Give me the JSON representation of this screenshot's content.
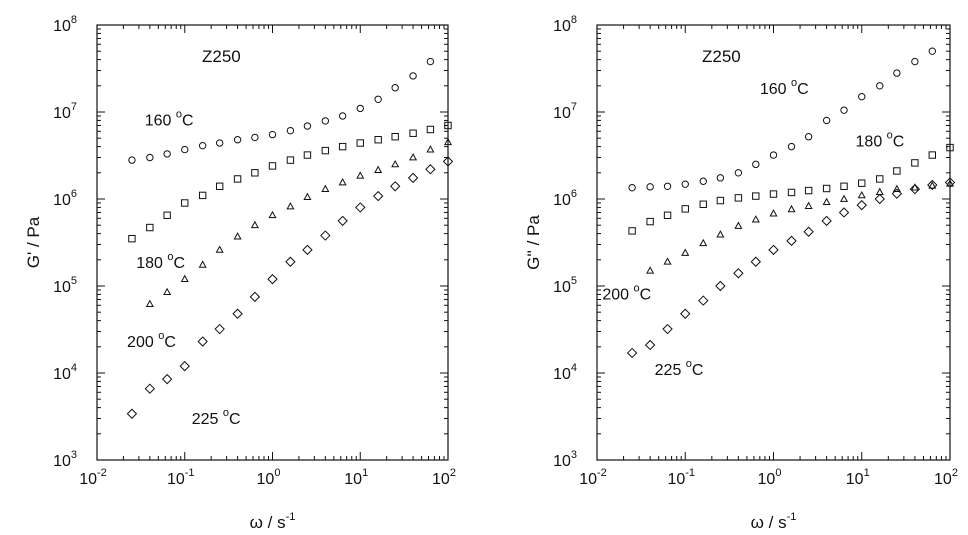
{
  "chart_data": [
    {
      "type": "scatter",
      "title": "Z250",
      "xlabel": "ω / s",
      "xlabel_sup": "-1",
      "ylabel": "G' / Pa",
      "x_scale": "log",
      "y_scale": "log",
      "xlim": [
        0.01,
        100
      ],
      "ylim": [
        1000,
        100000000
      ],
      "x_ticks": [
        {
          "base": "10",
          "exp": "-2"
        },
        {
          "base": "10",
          "exp": "-1"
        },
        {
          "base": "10",
          "exp": "0"
        },
        {
          "base": "10",
          "exp": "1"
        },
        {
          "base": "10",
          "exp": "2"
        }
      ],
      "y_ticks": [
        {
          "base": "10",
          "exp": "3"
        },
        {
          "base": "10",
          "exp": "4"
        },
        {
          "base": "10",
          "exp": "5"
        },
        {
          "base": "10",
          "exp": "6"
        },
        {
          "base": "10",
          "exp": "7"
        },
        {
          "base": "10",
          "exp": "8"
        }
      ],
      "series": [
        {
          "name": "160 °C",
          "marker": "circle",
          "x": [
            0.025,
            0.04,
            0.063,
            0.1,
            0.16,
            0.25,
            0.4,
            0.63,
            1.0,
            1.6,
            2.5,
            4.0,
            6.3,
            10,
            16,
            25,
            40,
            63
          ],
          "y": [
            2800000,
            3000000,
            3300000,
            3700000,
            4100000,
            4400000,
            4800000,
            5100000,
            5500000,
            6100000,
            6900000,
            7900000,
            9000000,
            11000000,
            14000000,
            19000000,
            26000000,
            38000000
          ]
        },
        {
          "name": "180 °C",
          "marker": "square",
          "x": [
            0.025,
            0.04,
            0.063,
            0.1,
            0.16,
            0.25,
            0.4,
            0.63,
            1.0,
            1.6,
            2.5,
            4.0,
            6.3,
            10,
            16,
            25,
            40,
            63,
            100
          ],
          "y": [
            350000,
            470000,
            650000,
            900000,
            1100000,
            1400000,
            1700000,
            2000000,
            2400000,
            2800000,
            3200000,
            3600000,
            4000000,
            4400000,
            4800000,
            5200000,
            5700000,
            6300000,
            7000000
          ]
        },
        {
          "name": "200 °C",
          "marker": "triangle",
          "x": [
            0.04,
            0.063,
            0.1,
            0.16,
            0.25,
            0.4,
            0.63,
            1.0,
            1.6,
            2.5,
            4.0,
            6.3,
            10,
            16,
            25,
            40,
            63,
            100
          ],
          "y": [
            62000,
            85000,
            120000,
            175000,
            260000,
            370000,
            500000,
            650000,
            820000,
            1050000,
            1300000,
            1550000,
            1850000,
            2150000,
            2500000,
            3000000,
            3700000,
            4500000
          ]
        },
        {
          "name": "225 °C",
          "marker": "diamond",
          "x": [
            0.025,
            0.04,
            0.063,
            0.1,
            0.16,
            0.25,
            0.4,
            0.63,
            1.0,
            1.6,
            2.5,
            4.0,
            6.3,
            10,
            16,
            25,
            40,
            63,
            100
          ],
          "y": [
            3400,
            6600,
            8500,
            12000,
            23000,
            32000,
            48000,
            75000,
            120000,
            190000,
            260000,
            380000,
            560000,
            800000,
            1080000,
            1400000,
            1750000,
            2200000,
            2700000
          ]
        }
      ],
      "annotations": [
        {
          "text": "160",
          "sup": "o",
          "unit": "C",
          "x": 0.035,
          "y": 7000000
        },
        {
          "text": "180",
          "sup": "o",
          "unit": "C",
          "x": 0.028,
          "y": 160000
        },
        {
          "text": "200",
          "sup": "o",
          "unit": "C",
          "x": 0.022,
          "y": 20000
        },
        {
          "text": "225",
          "sup": "o",
          "unit": "C",
          "x": 0.12,
          "y": 2600
        }
      ]
    },
    {
      "type": "scatter",
      "title": "Z250",
      "xlabel": "ω / s",
      "xlabel_sup": "-1",
      "ylabel": "G'' / Pa",
      "x_scale": "log",
      "y_scale": "log",
      "xlim": [
        0.01,
        100
      ],
      "ylim": [
        1000,
        100000000
      ],
      "x_ticks": [
        {
          "base": "10",
          "exp": "-2"
        },
        {
          "base": "10",
          "exp": "-1"
        },
        {
          "base": "10",
          "exp": "0"
        },
        {
          "base": "10",
          "exp": "1"
        },
        {
          "base": "10",
          "exp": "2"
        }
      ],
      "y_ticks": [
        {
          "base": "10",
          "exp": "3"
        },
        {
          "base": "10",
          "exp": "4"
        },
        {
          "base": "10",
          "exp": "5"
        },
        {
          "base": "10",
          "exp": "6"
        },
        {
          "base": "10",
          "exp": "7"
        },
        {
          "base": "10",
          "exp": "8"
        }
      ],
      "series": [
        {
          "name": "160 °C",
          "marker": "circle",
          "x": [
            0.025,
            0.04,
            0.063,
            0.1,
            0.16,
            0.25,
            0.4,
            0.63,
            1.0,
            1.6,
            2.5,
            4.0,
            6.3,
            10,
            16,
            25,
            40,
            63
          ],
          "y": [
            1350000,
            1380000,
            1400000,
            1480000,
            1600000,
            1750000,
            2000000,
            2500000,
            3200000,
            4000000,
            5200000,
            8000000,
            10500000,
            15000000,
            20000000,
            28000000,
            38000000,
            50000000
          ]
        },
        {
          "name": "180 °C",
          "marker": "square",
          "x": [
            0.025,
            0.04,
            0.063,
            0.1,
            0.16,
            0.25,
            0.4,
            0.63,
            1.0,
            1.6,
            2.5,
            4.0,
            6.3,
            10,
            16,
            25,
            40,
            63,
            100
          ],
          "y": [
            430000,
            550000,
            650000,
            770000,
            870000,
            960000,
            1030000,
            1080000,
            1140000,
            1190000,
            1250000,
            1320000,
            1400000,
            1520000,
            1700000,
            2100000,
            2600000,
            3200000,
            3900000
          ]
        },
        {
          "name": "200 °C",
          "marker": "triangle",
          "x": [
            0.04,
            0.063,
            0.1,
            0.16,
            0.25,
            0.4,
            0.63,
            1.0,
            1.6,
            2.5,
            4.0,
            6.3,
            10,
            16,
            25,
            40,
            63,
            100
          ],
          "y": [
            150000,
            190000,
            240000,
            310000,
            390000,
            490000,
            580000,
            680000,
            760000,
            830000,
            920000,
            1000000,
            1100000,
            1200000,
            1300000,
            1350000,
            1420000,
            1500000
          ]
        },
        {
          "name": "225 °C",
          "marker": "diamond",
          "x": [
            0.025,
            0.04,
            0.063,
            0.1,
            0.16,
            0.25,
            0.4,
            0.63,
            1.0,
            1.6,
            2.5,
            4.0,
            6.3,
            10,
            16,
            25,
            40,
            63,
            100
          ],
          "y": [
            17000,
            21000,
            32000,
            48000,
            68000,
            100000,
            140000,
            190000,
            260000,
            330000,
            420000,
            560000,
            700000,
            850000,
            1000000,
            1150000,
            1300000,
            1450000,
            1550000
          ]
        }
      ],
      "annotations": [
        {
          "text": "160",
          "sup": "o",
          "unit": "C",
          "x": 0.7,
          "y": 16000000
        },
        {
          "text": "180",
          "sup": "o",
          "unit": "C",
          "x": 8.5,
          "y": 4000000
        },
        {
          "text": "200",
          "sup": "o",
          "unit": "C",
          "x": 0.0115,
          "y": 70000
        },
        {
          "text": "225",
          "sup": "o",
          "unit": "C",
          "x": 0.045,
          "y": 9500
        }
      ]
    }
  ]
}
